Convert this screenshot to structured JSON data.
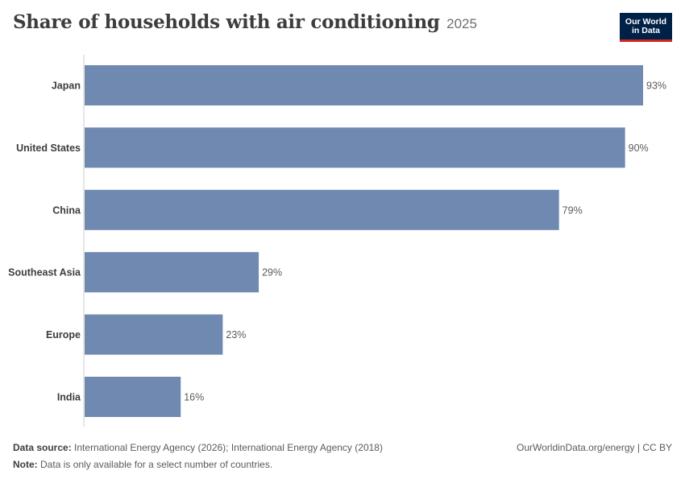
{
  "header": {
    "title": "Share of households with air conditioning",
    "year": "2025",
    "logo_line1": "Our World",
    "logo_line2": "in Data"
  },
  "footer": {
    "source_label": "Data source:",
    "source_text": "International Energy Agency (2026); International Energy Agency (2018)",
    "note_label": "Note:",
    "note_text": "Data is only available for a select number of countries.",
    "credit": "OurWorldinData.org/energy | CC BY"
  },
  "colors": {
    "bar": "#6f89b0",
    "axis": "#cccccc",
    "label": "#3d3d3d",
    "value": "#5b5b5b",
    "logo_bg": "#002147",
    "logo_accent": "#ce261e"
  },
  "chart_data": {
    "type": "bar",
    "orientation": "horizontal",
    "title": "Share of households with air conditioning",
    "categories": [
      "Japan",
      "United States",
      "China",
      "Southeast Asia",
      "Europe",
      "India"
    ],
    "values": [
      93,
      90,
      79,
      29,
      23,
      16
    ],
    "value_labels": [
      "93%",
      "90%",
      "79%",
      "29%",
      "23%",
      "16%"
    ],
    "unit": "%",
    "xlim": [
      0,
      93
    ],
    "grid": false
  }
}
